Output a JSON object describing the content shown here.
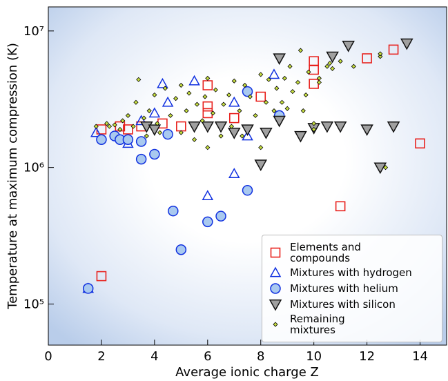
{
  "chart_data": {
    "type": "scatter",
    "xlabel": "Average ionic charge Z",
    "ylabel": "Temperature at maximum compression (K)",
    "xlim": [
      0,
      15
    ],
    "xticks": [
      0,
      2,
      4,
      6,
      8,
      10,
      12,
      14
    ],
    "ylim": [
      50000,
      15000000
    ],
    "log_y": true,
    "yticks": [
      {
        "value": 100000,
        "label": "10⁵"
      },
      {
        "value": 1000000,
        "label": "10⁶"
      },
      {
        "value": 10000000,
        "label": "10⁷"
      }
    ],
    "legend": "lower right",
    "series": [
      {
        "name": "Elements and\ncompounds",
        "marker": "square",
        "color": "#e8201c",
        "x": [
          2,
          2,
          2.7,
          3,
          3.5,
          4.3,
          5,
          6,
          6,
          6,
          7,
          8,
          10,
          10,
          10,
          11,
          12,
          13,
          14
        ],
        "values": [
          1900000,
          160000,
          2000000,
          1900000,
          2000000,
          2100000,
          2000000,
          4000000,
          2800000,
          2500000,
          2300000,
          3300000,
          6000000,
          5200000,
          4100000,
          520000,
          6300000,
          7300000,
          1500000
        ]
      },
      {
        "name": "Mixtures with hydrogen",
        "marker": "triangle",
        "color": "#1030e0",
        "x": [
          1.5,
          1.8,
          3,
          3.5,
          4,
          4.3,
          4.5,
          5.5,
          6,
          7,
          7,
          7.5,
          8.5
        ],
        "values": [
          130000,
          1800000,
          1500000,
          2200000,
          2500000,
          4100000,
          3000000,
          4300000,
          620000,
          900000,
          3000000,
          1700000,
          4800000
        ]
      },
      {
        "name": "Mixtures with helium",
        "marker": "circle",
        "color": "#1030e0",
        "x": [
          1.5,
          2,
          2.5,
          2.7,
          3,
          3.5,
          3.5,
          4,
          4.5,
          4.7,
          5,
          6,
          6.5,
          7.5,
          7.5,
          8.7
        ],
        "values": [
          130000,
          1600000,
          1700000,
          1600000,
          1600000,
          1550000,
          1150000,
          1250000,
          1750000,
          480000,
          250000,
          400000,
          440000,
          3600000,
          680000,
          2400000
        ]
      },
      {
        "name": "Mixtures with silicon",
        "marker": "triangle-down",
        "color": "#111111",
        "x": [
          3.7,
          4,
          5.5,
          6,
          6.5,
          7,
          7.5,
          8,
          8.2,
          8.7,
          8.7,
          9.5,
          10,
          10.5,
          10.7,
          11,
          11.3,
          12,
          12.5,
          13,
          13.5
        ],
        "values": [
          2000000,
          1900000,
          2000000,
          2000000,
          2000000,
          1800000,
          1900000,
          1050000,
          1800000,
          2200000,
          6300000,
          1700000,
          1950000,
          2000000,
          6500000,
          2000000,
          7800000,
          1900000,
          1000000,
          2000000,
          8100000
        ]
      },
      {
        "name": "Remaining\nmixtures",
        "marker": "diamond",
        "color": "#c8e040",
        "x": [
          1.8,
          2.2,
          2.3,
          2.5,
          2.7,
          2.8,
          3,
          3.2,
          3.3,
          3.4,
          3.6,
          3.7,
          3.8,
          4,
          4.1,
          4.2,
          4.4,
          4.6,
          4.8,
          5,
          5,
          5.2,
          5.3,
          5.5,
          5.6,
          5.8,
          5.9,
          6,
          6,
          6.2,
          6.3,
          6.5,
          6.6,
          6.8,
          6.9,
          7,
          7.2,
          7.3,
          7.4,
          7.6,
          7.8,
          8,
          8,
          8.2,
          8.3,
          8.5,
          8.6,
          8.8,
          8.9,
          9,
          9.1,
          9.2,
          9.4,
          9.5,
          9.6,
          9.7,
          9.8,
          10,
          10,
          10.2,
          10.2,
          10.5,
          10.6,
          10.7,
          11,
          11.5,
          12.5,
          12.5,
          12.7
        ],
        "values": [
          2000000,
          2100000,
          2000000,
          2050000,
          1900000,
          2200000,
          2400000,
          2000000,
          3000000,
          4400000,
          2300000,
          1700000,
          2600000,
          3400000,
          2100000,
          1800000,
          3800000,
          2400000,
          3200000,
          4000000,
          1800000,
          2600000,
          3500000,
          1600000,
          2900000,
          2200000,
          3300000,
          4500000,
          1400000,
          2500000,
          3700000,
          1700000,
          2900000,
          3400000,
          2000000,
          4300000,
          2600000,
          1700000,
          4000000,
          3300000,
          2400000,
          4800000,
          1400000,
          3000000,
          4400000,
          2600000,
          3800000,
          3000000,
          4500000,
          2700000,
          5500000,
          3600000,
          4200000,
          7200000,
          2600000,
          3400000,
          5000000,
          2100000,
          1900000,
          4500000,
          4200000,
          5500000,
          5800000,
          5300000,
          6000000,
          5500000,
          6500000,
          6800000,
          1000000
        ]
      }
    ]
  }
}
